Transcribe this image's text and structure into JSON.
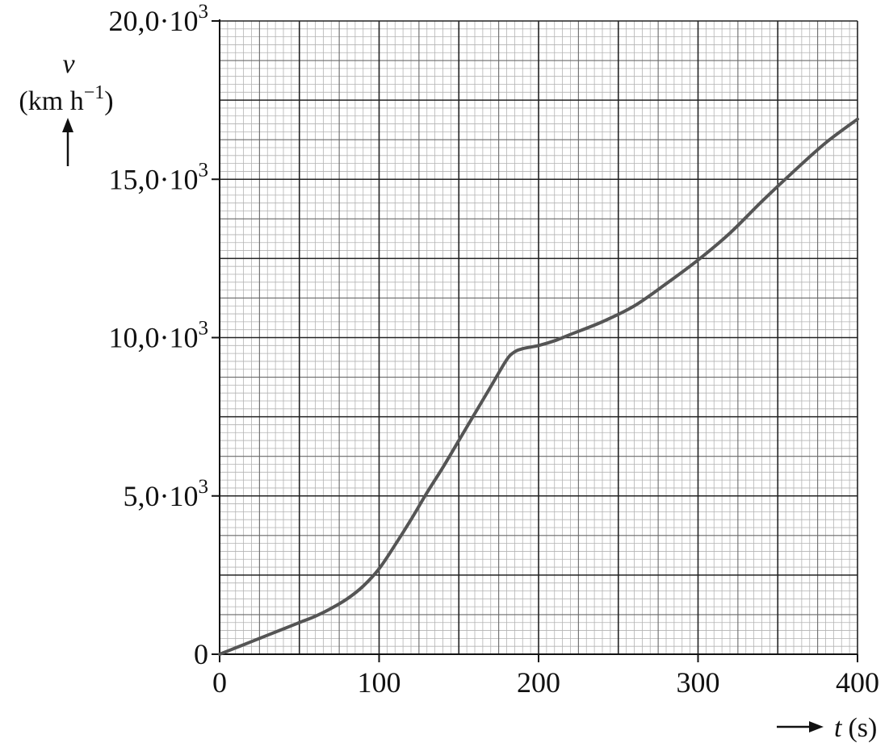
{
  "chart_data": {
    "type": "line",
    "title": "",
    "xlabel": {
      "symbol": "t",
      "unit": "(s)"
    },
    "ylabel": {
      "symbol": "v",
      "unit": "(km h",
      "unit_exp": "−1",
      "unit_close": ")"
    },
    "xlim": [
      0,
      400
    ],
    "ylim": [
      0,
      20000
    ],
    "grid": true,
    "x_ticks": [
      {
        "value": 0,
        "label": "0"
      },
      {
        "value": 100,
        "label": "100"
      },
      {
        "value": 200,
        "label": "200"
      },
      {
        "value": 300,
        "label": "300"
      },
      {
        "value": 400,
        "label": "400"
      }
    ],
    "y_ticks": [
      {
        "value": 0,
        "mant": "0",
        "dot": "",
        "base": "",
        "exp": ""
      },
      {
        "value": 5000,
        "mant": "5,0",
        "dot": "·",
        "base": "10",
        "exp": "3"
      },
      {
        "value": 10000,
        "mant": "10,0",
        "dot": "·",
        "base": "10",
        "exp": "3"
      },
      {
        "value": 15000,
        "mant": "15,0",
        "dot": "·",
        "base": "10",
        "exp": "3"
      },
      {
        "value": 20000,
        "mant": "20,0",
        "dot": "·",
        "base": "10",
        "exp": "3"
      }
    ],
    "series": [
      {
        "color": "#555555",
        "x": [
          0,
          10,
          20,
          30,
          40,
          50,
          60,
          70,
          80,
          90,
          100,
          110,
          120,
          130,
          140,
          150,
          160,
          170,
          180,
          185,
          190,
          200,
          210,
          220,
          240,
          260,
          280,
          300,
          320,
          340,
          360,
          380,
          400
        ],
        "y": [
          0,
          200,
          400,
          600,
          800,
          1000,
          1200,
          1450,
          1750,
          2150,
          2700,
          3450,
          4250,
          5100,
          5900,
          6750,
          7600,
          8450,
          9300,
          9550,
          9650,
          9750,
          9900,
          10100,
          10500,
          11000,
          11700,
          12450,
          13300,
          14300,
          15250,
          16150,
          16900
        ]
      }
    ]
  }
}
